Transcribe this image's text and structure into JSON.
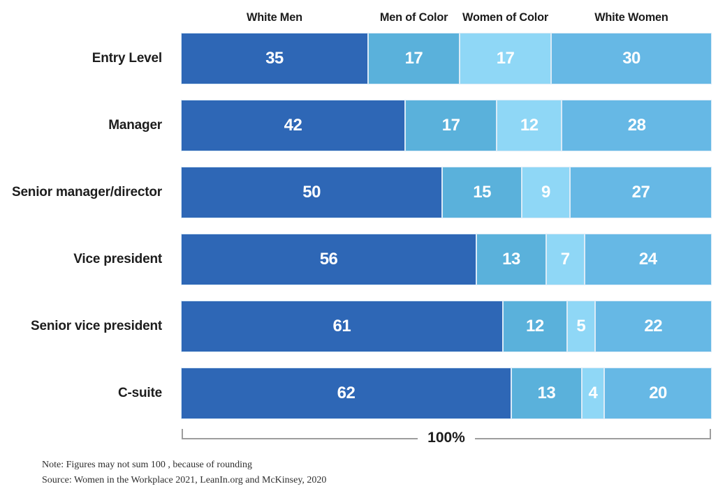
{
  "chart_data": {
    "type": "bar",
    "orientation": "horizontal-stacked",
    "title": "",
    "categories": [
      "Entry Level",
      "Manager",
      "Senior manager/director",
      "Vice president",
      "Senior vice president",
      "C-suite"
    ],
    "series": [
      {
        "name": "White Men",
        "color": "#2e67b6",
        "values": [
          35,
          42,
          50,
          56,
          61,
          62
        ]
      },
      {
        "name": "Men of Color",
        "color": "#5ab1db",
        "values": [
          17,
          17,
          15,
          13,
          12,
          13
        ]
      },
      {
        "name": "Women of Color",
        "color": "#8fd7f6",
        "values": [
          17,
          12,
          9,
          7,
          5,
          4
        ]
      },
      {
        "name": "White Women",
        "color": "#66b8e5",
        "values": [
          30,
          28,
          27,
          24,
          22,
          20
        ]
      }
    ],
    "xlim": [
      0,
      100
    ],
    "total_label": "100%",
    "legend_position": "top",
    "value_label_style": "white-bold-inside",
    "grid": false
  },
  "notes": {
    "note": "Note: Figures may not sum 100 , because of rounding",
    "source": "Source: Women in the Workplace 2021, LeanIn.org and McKinsey, 2020"
  }
}
